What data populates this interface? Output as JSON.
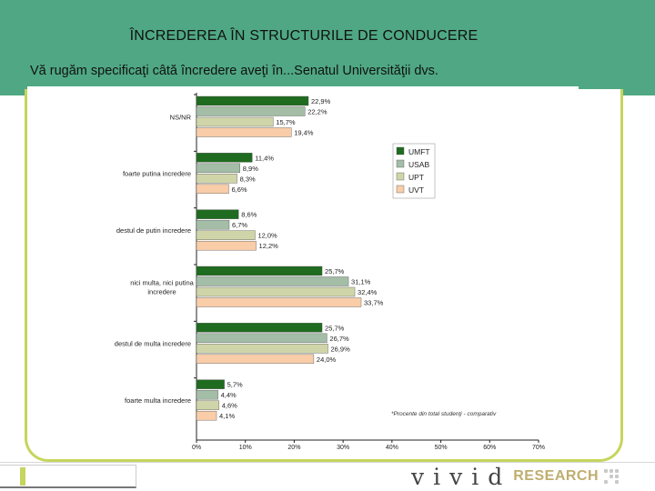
{
  "header": {
    "title": "ÎNCREDEREA ÎN STRUCTURILE DE CONDUCERE",
    "subtitle": "Vă rugăm specificaţi câtă încredere aveţi în...Senatul Universităţii dvs."
  },
  "colors": {
    "header_bg": "#4fa883",
    "frame": "#c6d55e",
    "UMFT": "#1f6b1f",
    "USAB": "#a4bda6",
    "UPT": "#cfd5a8",
    "UVT": "#f8cda8"
  },
  "footer": {
    "logo_word": "vivid",
    "logo_suffix": "RESEARCH",
    "logo_dots": "dots-icon"
  },
  "chart_data": {
    "type": "bar",
    "orientation": "horizontal",
    "categories": [
      "NS/NR",
      "foarte putina incredere",
      "destul de putin incredere",
      "nici multa, nici putina incredere",
      "destul de multa incredere",
      "foarte multa incredere"
    ],
    "series": [
      {
        "name": "UMFT",
        "color": "#1f6b1f",
        "values": [
          22.9,
          11.4,
          8.6,
          25.7,
          25.7,
          5.7
        ],
        "labels": [
          "22,9%",
          "11,4%",
          "8,6%",
          "25,7%",
          "25,7%",
          "5,7%"
        ]
      },
      {
        "name": "USAB",
        "color": "#a4bda6",
        "values": [
          22.2,
          8.9,
          6.7,
          31.1,
          26.7,
          4.4
        ],
        "labels": [
          "22,2%",
          "8,9%",
          "6,7%",
          "31,1%",
          "26,7%",
          "4,4%"
        ]
      },
      {
        "name": "UPT",
        "color": "#cfd5a8",
        "values": [
          15.7,
          8.3,
          12.0,
          32.4,
          26.9,
          4.6
        ],
        "labels": [
          "15,7%",
          "8,3%",
          "12,0%",
          "32,4%",
          "26,9%",
          "4,6%"
        ]
      },
      {
        "name": "UVT",
        "color": "#f8cda8",
        "values": [
          19.4,
          6.6,
          12.2,
          33.7,
          24.0,
          4.1
        ],
        "labels": [
          "19,4%",
          "6,6%",
          "12,2%",
          "33,7%",
          "24,0%",
          "4,1%"
        ]
      }
    ],
    "xlim": [
      0,
      70
    ],
    "xticks": [
      0,
      10,
      20,
      30,
      40,
      50,
      60,
      70
    ],
    "xtick_labels": [
      "0%",
      "10%",
      "20%",
      "30%",
      "40%",
      "50%",
      "60%",
      "70%"
    ],
    "legend_position": "top-right",
    "annotation": "*Procente din total studenţi - comparativ",
    "grid": false
  }
}
